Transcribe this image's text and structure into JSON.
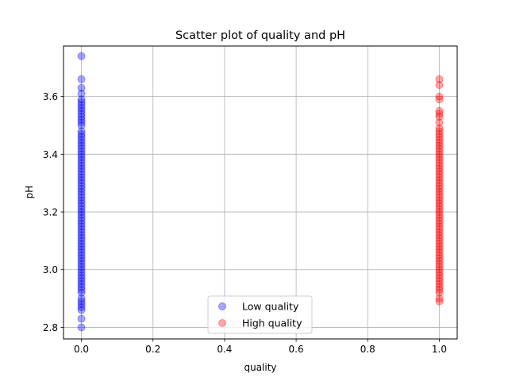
{
  "chart_data": {
    "type": "scatter",
    "title": "Scatter plot of quality and pH",
    "xlabel": "quality",
    "ylabel": "pH",
    "xlim": [
      -0.05,
      1.05
    ],
    "ylim": [
      2.76,
      3.775
    ],
    "xticks": [
      0.0,
      0.2,
      0.4,
      0.6,
      0.8,
      1.0
    ],
    "xtick_labels": [
      "0.0",
      "0.2",
      "0.4",
      "0.6",
      "0.8",
      "1.0"
    ],
    "yticks": [
      2.8,
      3.0,
      3.2,
      3.4,
      3.6
    ],
    "ytick_labels": [
      "2.8",
      "3.0",
      "3.2",
      "3.4",
      "3.6"
    ],
    "grid": true,
    "legend_position": "lower-center",
    "series": [
      {
        "name": "Low quality",
        "color": "#0000ff",
        "alpha": 0.35,
        "x": 0.0,
        "y": [
          2.8,
          2.83,
          2.86,
          2.87,
          2.88,
          2.89,
          2.9,
          2.92,
          2.93,
          2.94,
          2.95,
          2.96,
          2.97,
          2.98,
          2.99,
          3.0,
          3.01,
          3.02,
          3.03,
          3.04,
          3.05,
          3.06,
          3.07,
          3.08,
          3.09,
          3.1,
          3.11,
          3.12,
          3.13,
          3.14,
          3.15,
          3.16,
          3.17,
          3.18,
          3.19,
          3.2,
          3.21,
          3.22,
          3.23,
          3.24,
          3.25,
          3.26,
          3.27,
          3.28,
          3.29,
          3.3,
          3.31,
          3.32,
          3.33,
          3.34,
          3.35,
          3.36,
          3.37,
          3.38,
          3.39,
          3.4,
          3.41,
          3.42,
          3.43,
          3.44,
          3.45,
          3.46,
          3.47,
          3.48,
          3.5,
          3.51,
          3.52,
          3.53,
          3.54,
          3.55,
          3.56,
          3.57,
          3.58,
          3.59,
          3.61,
          3.63,
          3.66,
          3.74
        ]
      },
      {
        "name": "High quality",
        "color": "#ff0000",
        "alpha": 0.35,
        "x": 1.0,
        "y": [
          2.89,
          2.9,
          2.92,
          2.93,
          2.94,
          2.95,
          2.96,
          2.97,
          2.98,
          2.99,
          3.0,
          3.01,
          3.02,
          3.03,
          3.04,
          3.05,
          3.06,
          3.07,
          3.08,
          3.09,
          3.1,
          3.11,
          3.12,
          3.13,
          3.14,
          3.15,
          3.16,
          3.17,
          3.18,
          3.19,
          3.2,
          3.21,
          3.22,
          3.23,
          3.24,
          3.25,
          3.26,
          3.27,
          3.28,
          3.29,
          3.3,
          3.31,
          3.32,
          3.33,
          3.34,
          3.35,
          3.36,
          3.37,
          3.38,
          3.39,
          3.4,
          3.41,
          3.42,
          3.43,
          3.44,
          3.45,
          3.46,
          3.47,
          3.48,
          3.49,
          3.51,
          3.53,
          3.54,
          3.55,
          3.59,
          3.6,
          3.64,
          3.66
        ]
      }
    ]
  }
}
